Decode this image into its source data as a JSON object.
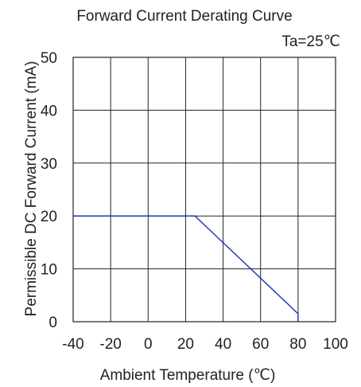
{
  "chart_data": {
    "type": "line",
    "title": "Forward Current Derating Curve",
    "annotation": "Ta=25℃",
    "xlabel": "Ambient Temperature (℃)",
    "ylabel": "Permissible DC Forward Current (mA)",
    "xlim": [
      -40,
      100
    ],
    "ylim": [
      0,
      50
    ],
    "x_ticks": [
      -40,
      -20,
      0,
      20,
      40,
      60,
      80,
      100
    ],
    "y_ticks": [
      0,
      10,
      20,
      30,
      40,
      50
    ],
    "x_tick_labels": [
      "-40",
      "-20",
      "0",
      "20",
      "40",
      "60",
      "80",
      "100"
    ],
    "y_tick_labels": [
      "0",
      "10",
      "20",
      "30",
      "40",
      "50"
    ],
    "grid": true,
    "series": [
      {
        "color": "#1a2fb5",
        "points": [
          [
            -40,
            20
          ],
          [
            25,
            20
          ],
          [
            80,
            1.5
          ],
          [
            80,
            0
          ]
        ]
      }
    ]
  }
}
